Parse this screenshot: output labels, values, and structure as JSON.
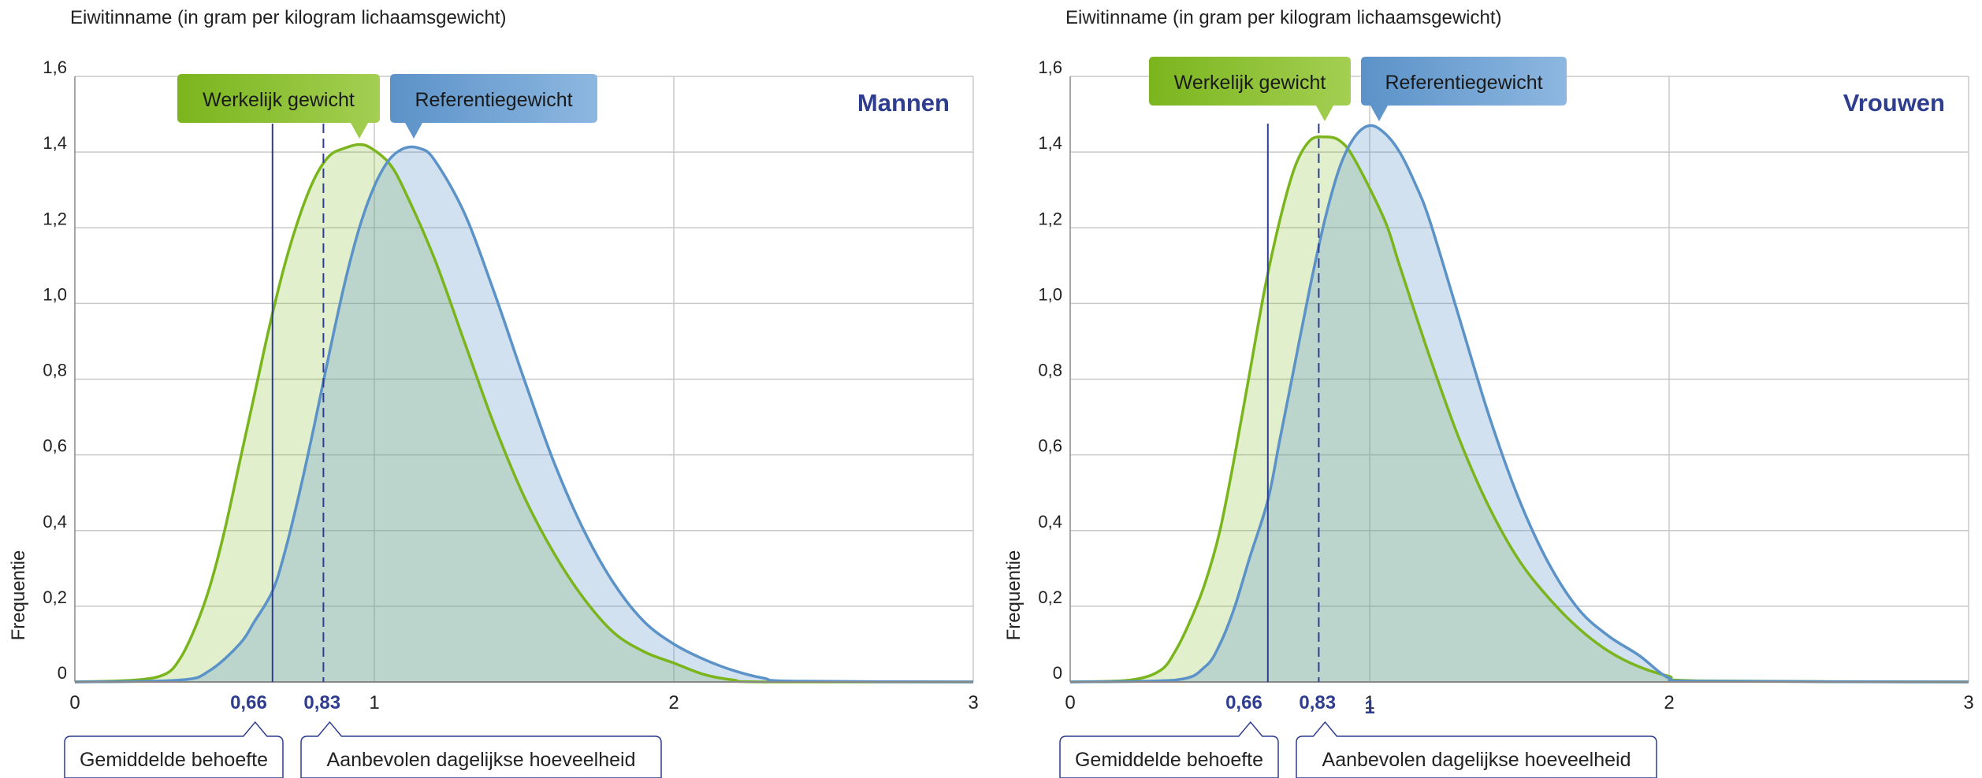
{
  "chart_data": [
    {
      "type": "area",
      "title": "Eiwitinname (in gram per kilogram lichaamsgewicht)",
      "panel_label": "Mannen",
      "ylabel": "Frequentie",
      "xlim": [
        0,
        3
      ],
      "ylim": [
        0,
        1.6
      ],
      "x_ticks": [
        "0",
        "1",
        "2",
        "3"
      ],
      "y_ticks": [
        "0",
        "0,2",
        "0,4",
        "0,6",
        "0,8",
        "1,0",
        "1,2",
        "1,4",
        "1,6"
      ],
      "grid": true,
      "series": [
        {
          "name": "Werkelijk gewicht",
          "color": "#7ab51d",
          "fill": "#e0ecc0",
          "x": [
            0,
            0.2,
            0.3,
            0.35,
            0.4,
            0.45,
            0.5,
            0.55,
            0.6,
            0.65,
            0.7,
            0.75,
            0.8,
            0.85,
            0.9,
            0.95,
            0.99,
            1.05,
            1.1,
            1.2,
            1.3,
            1.4,
            1.5,
            1.6,
            1.7,
            1.8,
            1.9,
            2.0,
            2.1,
            2.2,
            2.3,
            3.0
          ],
          "y": [
            0,
            0.005,
            0.02,
            0.06,
            0.14,
            0.25,
            0.4,
            0.58,
            0.76,
            0.94,
            1.1,
            1.23,
            1.33,
            1.39,
            1.41,
            1.42,
            1.41,
            1.37,
            1.3,
            1.12,
            0.9,
            0.68,
            0.49,
            0.34,
            0.22,
            0.13,
            0.08,
            0.05,
            0.02,
            0.005,
            0,
            0
          ]
        },
        {
          "name": "Referentiegewicht",
          "color": "#5b92c8",
          "fill": "#c8dbed",
          "x": [
            0,
            0.35,
            0.45,
            0.55,
            0.6,
            0.66,
            0.7,
            0.75,
            0.8,
            0.85,
            0.9,
            0.95,
            1.0,
            1.05,
            1.1,
            1.15,
            1.2,
            1.3,
            1.4,
            1.5,
            1.6,
            1.7,
            1.8,
            1.9,
            2.0,
            2.1,
            2.2,
            2.3,
            2.4,
            3.0
          ],
          "y": [
            0,
            0.005,
            0.03,
            0.1,
            0.16,
            0.24,
            0.34,
            0.5,
            0.68,
            0.87,
            1.05,
            1.2,
            1.31,
            1.38,
            1.41,
            1.41,
            1.38,
            1.24,
            1.03,
            0.8,
            0.58,
            0.4,
            0.26,
            0.16,
            0.1,
            0.06,
            0.03,
            0.01,
            0.002,
            0
          ]
        }
      ],
      "reference_lines": [
        {
          "x": 0.66,
          "label": "0,66",
          "style": "solid",
          "callout": "Gemiddelde behoefte"
        },
        {
          "x": 0.83,
          "label": "0,83",
          "style": "dashed",
          "callout": "Aanbevolen dagelijkse hoeveelheid"
        }
      ]
    },
    {
      "type": "area",
      "title": "Eiwitinname (in gram per kilogram lichaamsgewicht)",
      "panel_label": "Vrouwen",
      "ylabel": "Frequentie",
      "xlim": [
        0,
        3
      ],
      "ylim": [
        0,
        1.6
      ],
      "x_ticks": [
        "0",
        "1",
        "2",
        "3"
      ],
      "y_ticks": [
        "0",
        "0,2",
        "0,4",
        "0,6",
        "0,8",
        "1,0",
        "1,2",
        "1,4",
        "1,6"
      ],
      "grid": true,
      "series": [
        {
          "name": "Werkelijk gewicht",
          "color": "#7ab51d",
          "fill": "#e0ecc0",
          "x": [
            0,
            0.2,
            0.3,
            0.35,
            0.4,
            0.45,
            0.5,
            0.55,
            0.6,
            0.65,
            0.7,
            0.75,
            0.8,
            0.85,
            0.9,
            0.95,
            1.05,
            1.1,
            1.2,
            1.3,
            1.4,
            1.5,
            1.6,
            1.7,
            1.8,
            1.9,
            2.0,
            2.1,
            3.0
          ],
          "y": [
            0,
            0.005,
            0.03,
            0.08,
            0.16,
            0.26,
            0.4,
            0.6,
            0.82,
            1.04,
            1.22,
            1.36,
            1.43,
            1.44,
            1.43,
            1.38,
            1.22,
            1.1,
            0.86,
            0.64,
            0.46,
            0.32,
            0.22,
            0.14,
            0.08,
            0.04,
            0.015,
            0.003,
            0
          ]
        },
        {
          "name": "Referentiegewicht",
          "color": "#5b92c8",
          "fill": "#c8dbed",
          "x": [
            0,
            0.35,
            0.45,
            0.5,
            0.55,
            0.6,
            0.66,
            0.7,
            0.75,
            0.8,
            0.85,
            0.9,
            0.95,
            1.0,
            1.05,
            1.1,
            1.15,
            1.2,
            1.3,
            1.4,
            1.5,
            1.6,
            1.7,
            1.8,
            1.9,
            2.0,
            2.1,
            3.0
          ],
          "y": [
            0,
            0.005,
            0.04,
            0.1,
            0.2,
            0.33,
            0.48,
            0.64,
            0.84,
            1.04,
            1.22,
            1.36,
            1.44,
            1.47,
            1.45,
            1.4,
            1.32,
            1.22,
            0.96,
            0.7,
            0.48,
            0.31,
            0.19,
            0.12,
            0.07,
            0.01,
            0.002,
            0
          ]
        }
      ],
      "reference_lines": [
        {
          "x": 0.66,
          "label": "0,66",
          "style": "solid",
          "callout": "Gemiddelde behoefte"
        },
        {
          "x": 0.83,
          "label": "0,83",
          "style": "dashed",
          "callout": "Aanbevolen dagelijkse hoeveelheid"
        }
      ],
      "extra_x_label": "1"
    }
  ]
}
